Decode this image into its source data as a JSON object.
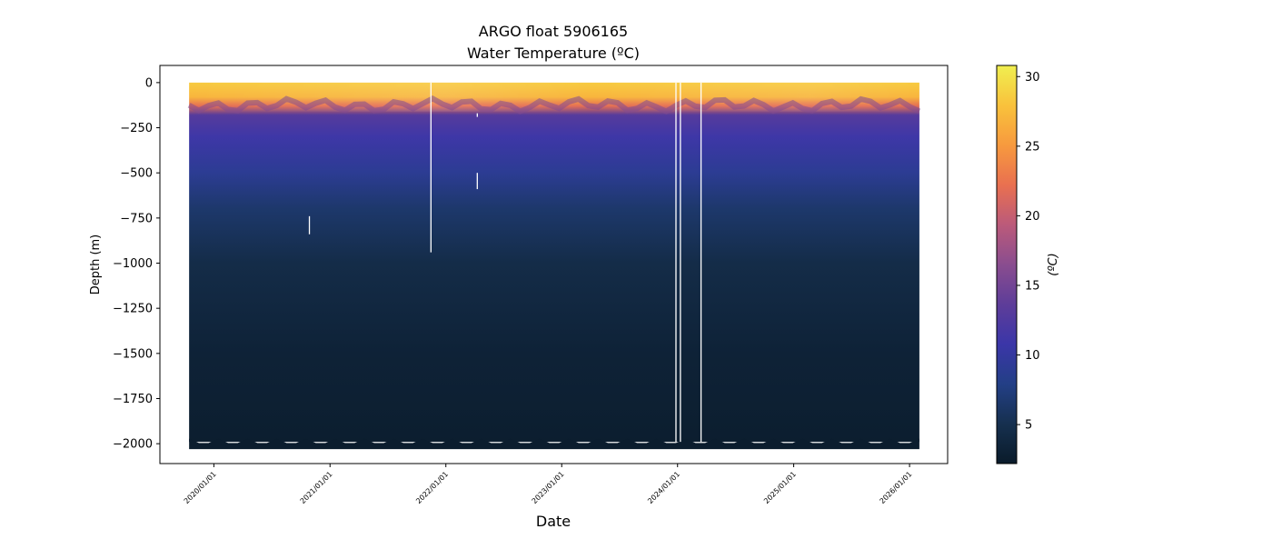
{
  "chart_data": {
    "type": "heatmap",
    "title": "ARGO float 5906165",
    "subtitle": "Water Temperature (ºC)",
    "xlabel": "Date",
    "ylabel": "Depth (m)",
    "colorbar_label": "(ºC)",
    "x_range": [
      "2019-07-15",
      "2026-05-01"
    ],
    "data_x_range": [
      "2019-10-15",
      "2026-02-01"
    ],
    "ylim": [
      -2110,
      95
    ],
    "x_ticks": [
      "2020/01/01",
      "2021/01/01",
      "2022/01/01",
      "2023/01/01",
      "2024/01/01",
      "2025/01/01",
      "2026/01/01"
    ],
    "y_ticks": [
      0,
      -250,
      -500,
      -750,
      -1000,
      -1250,
      -1500,
      -1750,
      -2000
    ],
    "colorbar_range": [
      2.2,
      30.8
    ],
    "colorbar_ticks": [
      5,
      10,
      15,
      20,
      25,
      30
    ],
    "colormap": [
      "#0a1b2a",
      "#16304f",
      "#233f86",
      "#3b36a8",
      "#5e3d99",
      "#8a4d8f",
      "#bb5a7a",
      "#e97050",
      "#f79a3e",
      "#f9c23c",
      "#f0ef50"
    ],
    "temperature_profile": [
      {
        "depth": 0,
        "temp": 28.5
      },
      {
        "depth": -80,
        "temp": 27
      },
      {
        "depth": -130,
        "temp": 22
      },
      {
        "depth": -180,
        "temp": 13
      },
      {
        "depth": -300,
        "temp": 11
      },
      {
        "depth": -500,
        "temp": 9
      },
      {
        "depth": -700,
        "temp": 6.5
      },
      {
        "depth": -1000,
        "temp": 4.5
      },
      {
        "depth": -1500,
        "temp": 3.2
      },
      {
        "depth": -2000,
        "temp": 2.6
      }
    ],
    "profile_bottom_depth": -1990,
    "data_gaps": [
      {
        "date": "2021-11-15",
        "top": 0,
        "bottom": -940
      },
      {
        "date": "2023-12-27",
        "top": 0,
        "bottom": -1990
      },
      {
        "date": "2024-01-10",
        "top": 0,
        "bottom": -1990
      },
      {
        "date": "2024-03-15",
        "top": 0,
        "bottom": -1990
      },
      {
        "date": "2022-04-10",
        "top": -500,
        "bottom": -590
      },
      {
        "date": "2020-10-28",
        "top": -740,
        "bottom": -840
      },
      {
        "date": "2022-04-10",
        "top": -170,
        "bottom": -190
      }
    ]
  }
}
